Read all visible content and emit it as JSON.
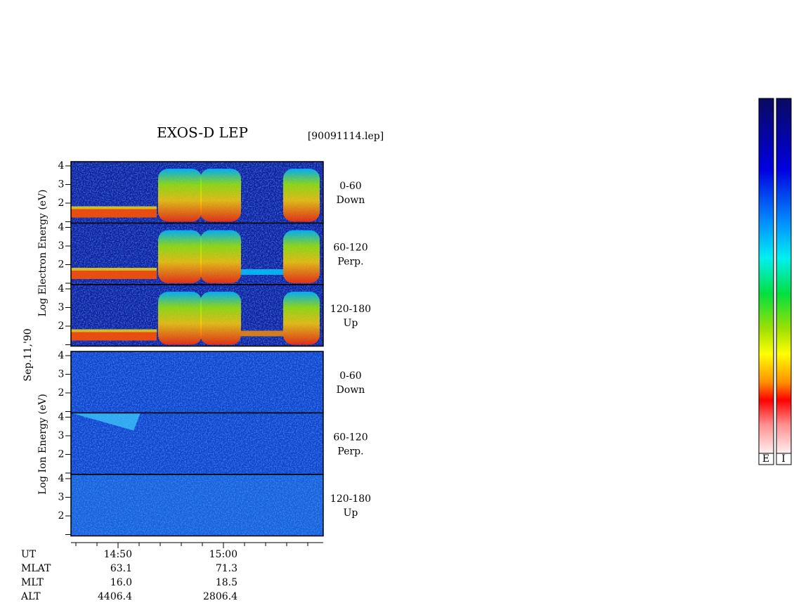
{
  "title": "EXOS-D LEP",
  "file_name": "[90091114.lep]",
  "date": "Sep.11,'90",
  "electron": {
    "axis_label": "Log Electron Energy (eV)",
    "panels": [
      {
        "angle": "0-60",
        "direction": "Down"
      },
      {
        "angle": "60-120",
        "direction": "Perp."
      },
      {
        "angle": "120-180",
        "direction": "Up"
      }
    ],
    "yticks": [
      "4",
      "3",
      "2"
    ]
  },
  "ion": {
    "axis_label": "Log Ion Energy (eV)",
    "panels": [
      {
        "angle": "0-60",
        "direction": "Down"
      },
      {
        "angle": "60-120",
        "direction": "Perp."
      },
      {
        "angle": "120-180",
        "direction": "Up"
      }
    ],
    "yticks": [
      "4",
      "3",
      "2"
    ]
  },
  "footer": {
    "rows": [
      [
        "UT",
        "14:50",
        "15:00"
      ],
      [
        "MLAT",
        "63.1",
        "71.3"
      ],
      [
        "MLT",
        "16.0",
        "18.5"
      ],
      [
        "ALT",
        "4406.4",
        "2806.4"
      ]
    ]
  },
  "colorbars": [
    "E",
    "I"
  ]
}
